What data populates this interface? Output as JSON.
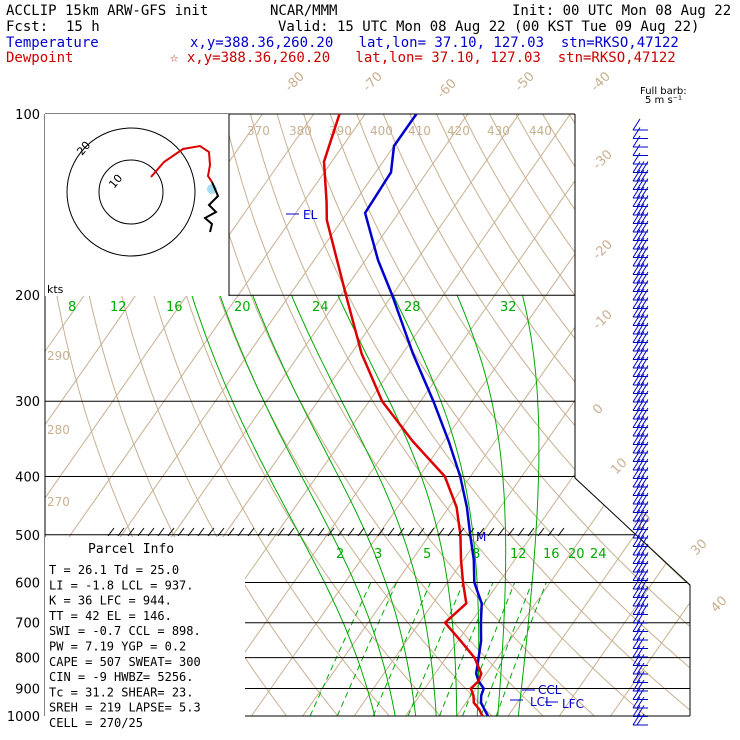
{
  "header": {
    "title": "ACCLIP 15km ARW-GFS init",
    "source": "NCAR/MMM",
    "init": "Init: 00 UTC Mon 08 Aug 22",
    "fcst_label": "Fcst:",
    "fcst_value": "15 h",
    "valid": "Valid: 15 UTC Mon 08 Aug 22 (00 KST Tue 09 Aug 22)",
    "temp_label": "Temperature",
    "temp_info": "x,y=388.36,260.20   lat,lon= 37.10, 127.03  stn=RKSO,47122",
    "dew_label": "Dewpoint",
    "dew_info": "☆ x,y=388.36,260.20   lat,lon= 37.10, 127.03  stn=RKSO,47122"
  },
  "colors": {
    "temperature": "#0000cc",
    "dewpoint": "#dd0000",
    "isotherm": "#c8b090",
    "mixing_ratio": "#00aa00",
    "isobar": "#000000"
  },
  "barb_label": "Full barb:",
  "barb_unit": "5 m s⁻¹",
  "hodograph": {
    "unit": "kts",
    "ring_labels": [
      "10",
      "20"
    ]
  },
  "chart_data": {
    "type": "line",
    "title": "",
    "y_kind": "log-pressure",
    "ylim": [
      1000,
      100
    ],
    "pressure_ticks": [
      "100",
      "200",
      "300",
      "400",
      "500",
      "600",
      "700",
      "800",
      "900",
      "1000"
    ],
    "isotherm_labels": [
      "-80",
      "-70",
      "-60",
      "-50",
      "-40",
      "-30",
      "-20",
      "-10",
      "0",
      "10",
      "20",
      "30",
      "40"
    ],
    "theta_labels_top": [
      "370",
      "380",
      "390",
      "400",
      "410",
      "420",
      "430",
      "440"
    ],
    "theta_labels_left": [
      "290",
      "280",
      "270"
    ],
    "mixing_ratio_labels_top": [
      "8",
      "12",
      "16",
      "20",
      "24",
      "28",
      "32"
    ],
    "mixing_ratio_labels_low": [
      "2",
      "3",
      "5",
      "8",
      "12",
      "16",
      "20",
      "24"
    ],
    "series": [
      {
        "name": "Temperature",
        "points": [
          [
            1000,
            26.1
          ],
          [
            975,
            24.5
          ],
          [
            950,
            22.9
          ],
          [
            925,
            22.0
          ],
          [
            900,
            21.5
          ],
          [
            875,
            19.5
          ],
          [
            850,
            18.0
          ],
          [
            800,
            16.3
          ],
          [
            750,
            14.5
          ],
          [
            700,
            12.0
          ],
          [
            650,
            9.5
          ],
          [
            600,
            5.2
          ],
          [
            550,
            2.0
          ],
          [
            500,
            -2.1
          ],
          [
            450,
            -6.5
          ],
          [
            400,
            -12.0
          ],
          [
            350,
            -19.0
          ],
          [
            300,
            -27.5
          ],
          [
            250,
            -38.0
          ],
          [
            200,
            -50.0
          ],
          [
            175,
            -57.5
          ],
          [
            146,
            -66.5
          ],
          [
            125,
            -67.0
          ],
          [
            113,
            -70.0
          ],
          [
            100,
            -70.0
          ]
        ]
      },
      {
        "name": "Dewpoint",
        "points": [
          [
            1000,
            25.0
          ],
          [
            975,
            23.5
          ],
          [
            950,
            21.5
          ],
          [
            925,
            20.5
          ],
          [
            900,
            19.0
          ],
          [
            875,
            19.5
          ],
          [
            850,
            19.0
          ],
          [
            800,
            15.5
          ],
          [
            750,
            10.5
          ],
          [
            700,
            5.0
          ],
          [
            650,
            6.5
          ],
          [
            600,
            3.0
          ],
          [
            550,
            -0.5
          ],
          [
            500,
            -4.0
          ],
          [
            450,
            -8.5
          ],
          [
            400,
            -15.0
          ],
          [
            350,
            -26.0
          ],
          [
            300,
            -37.5
          ],
          [
            250,
            -48.0
          ],
          [
            200,
            -59.0
          ],
          [
            175,
            -65.5
          ],
          [
            150,
            -73.0
          ],
          [
            140,
            -75.5
          ],
          [
            120,
            -81.5
          ],
          [
            100,
            -85.0
          ]
        ]
      }
    ],
    "annotations": [
      "EL",
      "M",
      "CCL",
      "LCL",
      "LFC"
    ]
  },
  "parcel_info": {
    "title": "Parcel Info",
    "rows": [
      "T  =    26.1  Td =  25.0",
      "LI =    -1.8  LCL =  937.",
      "K  =     36   LFC =  944.",
      "TT =     42   EL  =  146.",
      "SWI =   -0.7  CCL =  898.",
      "PW =    7.19  YGP =   0.2",
      "CAPE =   507  SWEAT=  300",
      "CIN =     -9  HWBZ= 5256.",
      "Tc =    31.2  SHEAR=  23.",
      "SREH =   219  LAPSE=  5.3",
      "CELL = 270/25"
    ]
  }
}
